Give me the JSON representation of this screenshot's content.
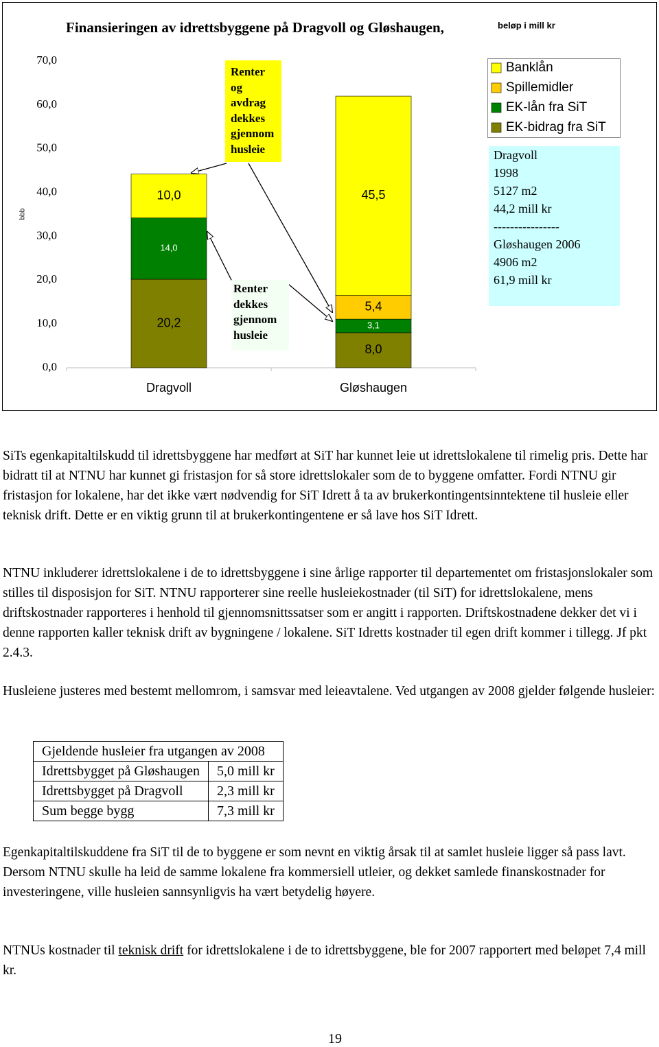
{
  "chart_data": {
    "type": "stacked_bar",
    "title": "Finansieringen av idrettsbyggene på Dragvoll og Gløshaugen,",
    "subtitle": "beløp i mill kr",
    "y_label": "bbb",
    "categories": [
      "Dragvoll",
      "Gløshaugen"
    ],
    "series": [
      {
        "name": "EK-bidrag fra SiT",
        "color": "#808000",
        "values": [
          20.2,
          8.0
        ],
        "value_labels": [
          "20,2",
          "8,0"
        ]
      },
      {
        "name": "EK-lån fra SiT",
        "color": "#008000",
        "values": [
          14.0,
          3.1
        ],
        "value_labels": [
          "14,0",
          "3,1"
        ]
      },
      {
        "name": "Spillemidler",
        "color": "#ffcc00",
        "values": [
          null,
          5.4
        ],
        "value_labels": [
          null,
          "5,4"
        ]
      },
      {
        "name": "Banklån",
        "color": "#ffff00",
        "values": [
          10.0,
          45.5
        ],
        "value_labels": [
          "10,0",
          "45,5"
        ]
      }
    ],
    "ylim": [
      0,
      70
    ],
    "yticks": [
      {
        "value": 0,
        "label": "0,0"
      },
      {
        "value": 10,
        "label": "10,0"
      },
      {
        "value": 20,
        "label": "20,0"
      },
      {
        "value": 30,
        "label": "30,0"
      },
      {
        "value": 40,
        "label": "40,0"
      },
      {
        "value": 50,
        "label": "50,0"
      },
      {
        "value": 60,
        "label": "60,0"
      },
      {
        "value": 70,
        "label": "70,0"
      }
    ],
    "grid": false,
    "annotations": [
      "Renter og avdrag dekkes gjennom husleie",
      "Renter dekkes gjennom husleie"
    ],
    "info_box": [
      "Dragvoll",
      "1998",
      "5127 m2",
      "44,2 mill kr",
      "----------------",
      "Gløshaugen 2006",
      "4906 m2",
      "61,9 mill kr"
    ]
  },
  "paragraphs": [
    "SiTs egenkapitaltilskudd til idrettsbyggene har medført at SiT har kunnet leie ut idrettslokalene til rimelig pris. Dette har bidratt til at NTNU har kunnet gi fristasjon for så store idrettslokaler som de to byggene omfatter. Fordi NTNU gir fristasjon for lokalene, har det ikke vært nødvendig for SiT Idrett å ta av brukerkontingentsinntektene til husleie eller teknisk drift. Dette er en viktig grunn til at brukerkontingentene er så lave hos SiT Idrett.",
    "NTNU inkluderer idrettslokalene i de to idrettsbyggene i sine årlige rapporter til departementet om fristasjonslokaler som stilles til disposisjon for SiT. NTNU rapporterer sine reelle husleiekostnader (til SiT) for idrettslokalene, mens driftskostnader rapporteres i henhold til gjennomsnittssatser som er angitt i rapporten. Driftskostnadene dekker det vi i denne rapporten kaller teknisk drift av bygningene / lokalene. SiT Idretts kostnader til egen drift kommer i tillegg. Jf pkt 2.4.3.",
    "Husleiene justeres med bestemt mellomrom, i samsvar med leieavtalene.  Ved utgangen av 2008 gjelder følgende husleier:",
    "Egenkapitaltilskuddene fra SiT til de to byggene er som nevnt en viktig årsak til at samlet husleie ligger så pass lavt.  Dersom NTNU skulle ha leid de samme lokalene fra kommersiell utleier, og dekket samlede finanskostnader for investeringene, ville husleien sannsynligvis ha vært betydelig høyere.",
    [
      "NTNUs kostnader til ",
      "teknisk drift",
      " for idrettslokalene i de to idrettsbyggene, ble for 2007 rapportert med beløpet 7,4 mill kr."
    ]
  ],
  "table": {
    "header": "Gjeldende husleier fra utgangen av 2008",
    "rows": [
      [
        "Idrettsbygget på Gløshaugen",
        "5,0 mill kr"
      ],
      [
        "Idrettsbygget på Dragvoll",
        "2,3 mill kr"
      ],
      [
        "Sum begge bygg",
        "7,3 mill kr"
      ]
    ]
  },
  "page_number": "19"
}
